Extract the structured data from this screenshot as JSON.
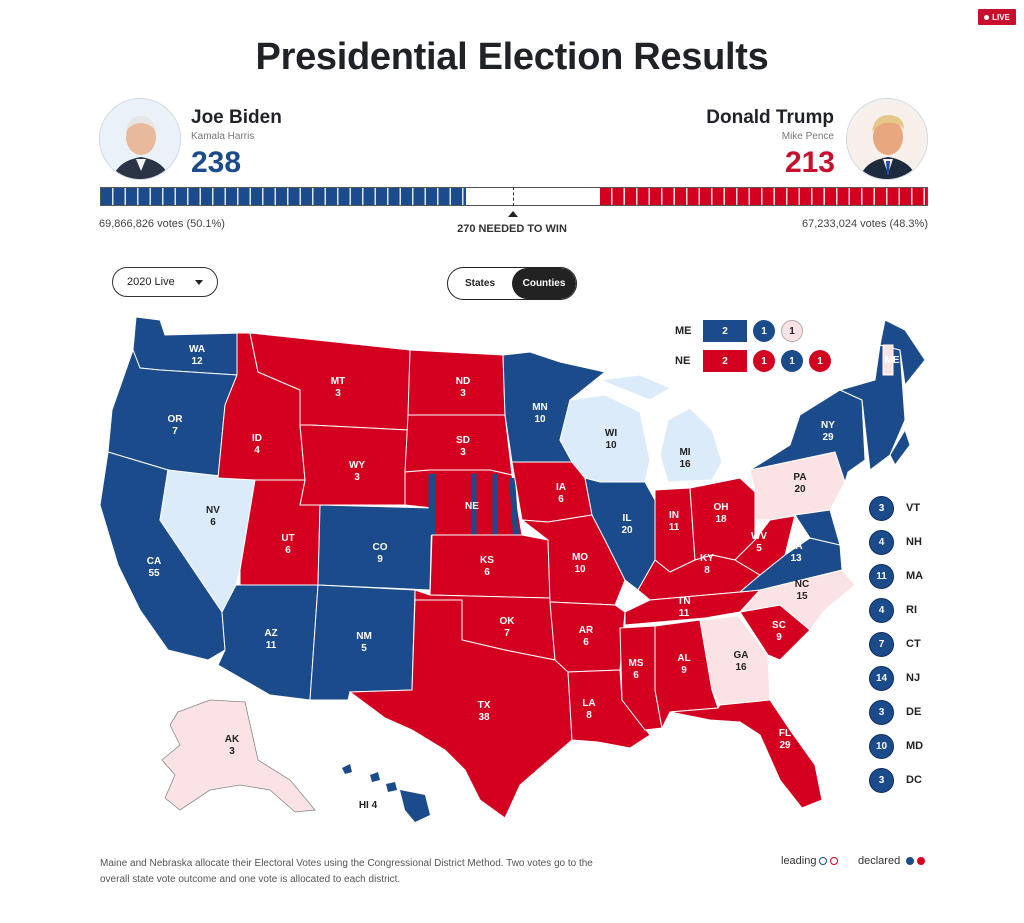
{
  "live_badge": "LIVE",
  "title": "Presidential Election Results",
  "candidates": {
    "left": {
      "name": "Joe Biden",
      "running_mate": "Kamala Harris",
      "electoral_votes": "238",
      "popular": "69,866,826 votes (50.1%)",
      "color": "#1b4b8a"
    },
    "right": {
      "name": "Donald Trump",
      "running_mate": "Mike Pence",
      "electoral_votes": "213",
      "popular": "67,233,024 votes (48.3%)",
      "color": "#d4001f"
    }
  },
  "threshold_label": "270 NEEDED TO WIN",
  "ev_bar": {
    "total": 538,
    "blue": 238,
    "red": 213,
    "undecided": 87
  },
  "controls": {
    "year_select": "2020 Live",
    "toggle": [
      "States",
      "Counties"
    ],
    "active_toggle": "Counties"
  },
  "states": [
    {
      "abbr": "WA",
      "ev": "12",
      "status": "biden"
    },
    {
      "abbr": "OR",
      "ev": "7",
      "status": "biden"
    },
    {
      "abbr": "CA",
      "ev": "55",
      "status": "biden"
    },
    {
      "abbr": "NV",
      "ev": "6",
      "status": "biden-leading"
    },
    {
      "abbr": "ID",
      "ev": "4",
      "status": "trump"
    },
    {
      "abbr": "MT",
      "ev": "3",
      "status": "trump"
    },
    {
      "abbr": "WY",
      "ev": "3",
      "status": "trump"
    },
    {
      "abbr": "UT",
      "ev": "6",
      "status": "trump"
    },
    {
      "abbr": "AZ",
      "ev": "11",
      "status": "biden"
    },
    {
      "abbr": "CO",
      "ev": "9",
      "status": "biden"
    },
    {
      "abbr": "NM",
      "ev": "5",
      "status": "biden"
    },
    {
      "abbr": "ND",
      "ev": "3",
      "status": "trump"
    },
    {
      "abbr": "SD",
      "ev": "3",
      "status": "trump"
    },
    {
      "abbr": "NE",
      "ev": "",
      "status": "trump"
    },
    {
      "abbr": "KS",
      "ev": "6",
      "status": "trump"
    },
    {
      "abbr": "OK",
      "ev": "7",
      "status": "trump"
    },
    {
      "abbr": "TX",
      "ev": "38",
      "status": "trump"
    },
    {
      "abbr": "MN",
      "ev": "10",
      "status": "biden"
    },
    {
      "abbr": "IA",
      "ev": "6",
      "status": "trump"
    },
    {
      "abbr": "MO",
      "ev": "10",
      "status": "trump"
    },
    {
      "abbr": "AR",
      "ev": "6",
      "status": "trump"
    },
    {
      "abbr": "LA",
      "ev": "8",
      "status": "trump"
    },
    {
      "abbr": "WI",
      "ev": "10",
      "status": "biden-leading"
    },
    {
      "abbr": "IL",
      "ev": "20",
      "status": "biden"
    },
    {
      "abbr": "MI",
      "ev": "16",
      "status": "biden-leading"
    },
    {
      "abbr": "IN",
      "ev": "11",
      "status": "trump"
    },
    {
      "abbr": "OH",
      "ev": "18",
      "status": "trump"
    },
    {
      "abbr": "KY",
      "ev": "8",
      "status": "trump"
    },
    {
      "abbr": "TN",
      "ev": "11",
      "status": "trump"
    },
    {
      "abbr": "MS",
      "ev": "6",
      "status": "trump"
    },
    {
      "abbr": "AL",
      "ev": "9",
      "status": "trump"
    },
    {
      "abbr": "GA",
      "ev": "16",
      "status": "trump-leading"
    },
    {
      "abbr": "FL",
      "ev": "29",
      "status": "trump"
    },
    {
      "abbr": "SC",
      "ev": "9",
      "status": "trump"
    },
    {
      "abbr": "NC",
      "ev": "15",
      "status": "trump-leading"
    },
    {
      "abbr": "VA",
      "ev": "13",
      "status": "biden"
    },
    {
      "abbr": "WV",
      "ev": "5",
      "status": "trump"
    },
    {
      "abbr": "PA",
      "ev": "20",
      "status": "trump-leading"
    },
    {
      "abbr": "NY",
      "ev": "29",
      "status": "biden"
    },
    {
      "abbr": "ME",
      "ev": "",
      "status": "biden"
    },
    {
      "abbr": "AK",
      "ev": "3",
      "status": "trump-leading"
    },
    {
      "abbr": "HI",
      "ev": "4",
      "status": "biden"
    }
  ],
  "district_states": {
    "ME": {
      "label": "ME",
      "box": "2",
      "box_status": "biden",
      "districts": [
        {
          "v": "1",
          "status": "biden"
        },
        {
          "v": "1",
          "status": "trump-leading"
        }
      ]
    },
    "NE": {
      "label": "NE",
      "box": "2",
      "box_status": "trump",
      "districts": [
        {
          "v": "1",
          "status": "trump"
        },
        {
          "v": "1",
          "status": "biden"
        },
        {
          "v": "1",
          "status": "trump"
        }
      ]
    }
  },
  "small_states": [
    {
      "abbr": "VT",
      "ev": "3"
    },
    {
      "abbr": "NH",
      "ev": "4"
    },
    {
      "abbr": "MA",
      "ev": "11"
    },
    {
      "abbr": "RI",
      "ev": "4"
    },
    {
      "abbr": "CT",
      "ev": "7"
    },
    {
      "abbr": "NJ",
      "ev": "14"
    },
    {
      "abbr": "DE",
      "ev": "3"
    },
    {
      "abbr": "MD",
      "ev": "10"
    },
    {
      "abbr": "DC",
      "ev": "3"
    }
  ],
  "footnote": "Maine and Nebraska allocate their Electoral Votes using the Congressional District Method. Two votes go to the overall state vote outcome and one vote is allocated to each district.",
  "legend": {
    "leading": "leading",
    "declared": "declared"
  },
  "colors": {
    "biden": "#1b4b8a",
    "trump": "#d4001f",
    "biden_leading": "#dcebf9",
    "trump_leading": "#fbe3e5"
  }
}
